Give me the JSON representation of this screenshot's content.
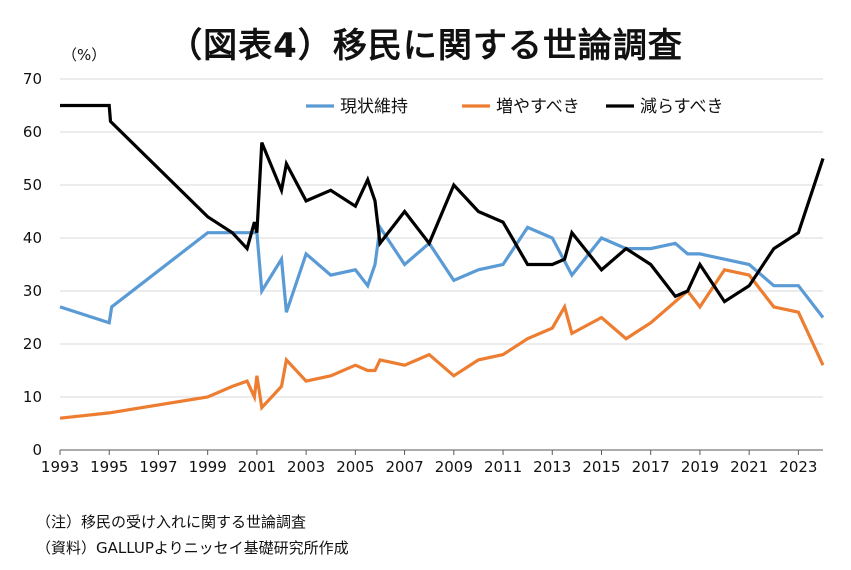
{
  "chart_data": {
    "type": "line",
    "title": "（図表4）移民に関する世論調査",
    "unit": "（%）",
    "xlabel": "",
    "ylabel": "",
    "xlim": [
      1993,
      2024
    ],
    "ylim": [
      0,
      70
    ],
    "yticks": [
      0,
      10,
      20,
      30,
      40,
      50,
      60,
      70
    ],
    "xticks": [
      1993,
      1995,
      1997,
      1999,
      2001,
      2003,
      2005,
      2007,
      2009,
      2011,
      2013,
      2015,
      2017,
      2019,
      2021,
      2023
    ],
    "grid": true,
    "legend_position": "top-right",
    "series": [
      {
        "name": "現状維持",
        "color": "#5b9bd5",
        "points": [
          [
            1993,
            27
          ],
          [
            1995,
            24
          ],
          [
            1995.1,
            27
          ],
          [
            1999,
            41
          ],
          [
            2000,
            41
          ],
          [
            2000.6,
            41
          ],
          [
            2001,
            41
          ],
          [
            2001.2,
            30
          ],
          [
            2002,
            36
          ],
          [
            2002.2,
            26
          ],
          [
            2003,
            37
          ],
          [
            2004,
            33
          ],
          [
            2005,
            34
          ],
          [
            2005.5,
            31
          ],
          [
            2005.8,
            35
          ],
          [
            2006,
            42
          ],
          [
            2007,
            35
          ],
          [
            2008,
            39
          ],
          [
            2009,
            32
          ],
          [
            2010,
            34
          ],
          [
            2011,
            35
          ],
          [
            2012,
            42
          ],
          [
            2013,
            40
          ],
          [
            2013.8,
            33
          ],
          [
            2015,
            40
          ],
          [
            2016,
            38
          ],
          [
            2017,
            38
          ],
          [
            2018,
            39
          ],
          [
            2018.5,
            37
          ],
          [
            2019,
            37
          ],
          [
            2020,
            36
          ],
          [
            2021,
            35
          ],
          [
            2022,
            31
          ],
          [
            2023,
            31
          ],
          [
            2024,
            25
          ]
        ]
      },
      {
        "name": "増やすべき",
        "color": "#ed7d31",
        "points": [
          [
            1993,
            6
          ],
          [
            1995,
            7
          ],
          [
            1999,
            10
          ],
          [
            2000,
            12
          ],
          [
            2000.6,
            13
          ],
          [
            2000.9,
            10
          ],
          [
            2001,
            14
          ],
          [
            2001.2,
            8
          ],
          [
            2002,
            12
          ],
          [
            2002.2,
            17
          ],
          [
            2003,
            13
          ],
          [
            2004,
            14
          ],
          [
            2005,
            16
          ],
          [
            2005.5,
            15
          ],
          [
            2005.8,
            15
          ],
          [
            2006,
            17
          ],
          [
            2007,
            16
          ],
          [
            2008,
            18
          ],
          [
            2009,
            14
          ],
          [
            2010,
            17
          ],
          [
            2011,
            18
          ],
          [
            2012,
            21
          ],
          [
            2013,
            23
          ],
          [
            2013.5,
            27
          ],
          [
            2013.8,
            22
          ],
          [
            2015,
            25
          ],
          [
            2016,
            21
          ],
          [
            2017,
            24
          ],
          [
            2018,
            28
          ],
          [
            2018.5,
            30
          ],
          [
            2019,
            27
          ],
          [
            2020,
            34
          ],
          [
            2021,
            33
          ],
          [
            2022,
            27
          ],
          [
            2023,
            26
          ],
          [
            2024,
            16
          ]
        ]
      },
      {
        "name": "減らすべき",
        "color": "#000000",
        "points": [
          [
            1993,
            65
          ],
          [
            1995,
            65
          ],
          [
            1995.05,
            62
          ],
          [
            1999,
            44
          ],
          [
            2000,
            41
          ],
          [
            2000.6,
            38
          ],
          [
            2000.9,
            43
          ],
          [
            2001,
            41
          ],
          [
            2001.2,
            58
          ],
          [
            2002,
            49
          ],
          [
            2002.2,
            54
          ],
          [
            2003,
            47
          ],
          [
            2004,
            49
          ],
          [
            2005,
            46
          ],
          [
            2005.5,
            51
          ],
          [
            2005.8,
            47
          ],
          [
            2006,
            39
          ],
          [
            2007,
            45
          ],
          [
            2008,
            39
          ],
          [
            2009,
            50
          ],
          [
            2010,
            45
          ],
          [
            2011,
            43
          ],
          [
            2012,
            35
          ],
          [
            2013,
            35
          ],
          [
            2013.5,
            36
          ],
          [
            2013.8,
            41
          ],
          [
            2015,
            34
          ],
          [
            2016,
            38
          ],
          [
            2017,
            35
          ],
          [
            2018,
            29
          ],
          [
            2018.5,
            30
          ],
          [
            2019,
            35
          ],
          [
            2020,
            28
          ],
          [
            2021,
            31
          ],
          [
            2022,
            38
          ],
          [
            2023,
            41
          ],
          [
            2024,
            55
          ]
        ]
      }
    ]
  },
  "notes": {
    "note1": "（注）移民の受け入れに関する世論調査",
    "note2": "（資料）GALLUPよりニッセイ基礎研究所作成"
  }
}
